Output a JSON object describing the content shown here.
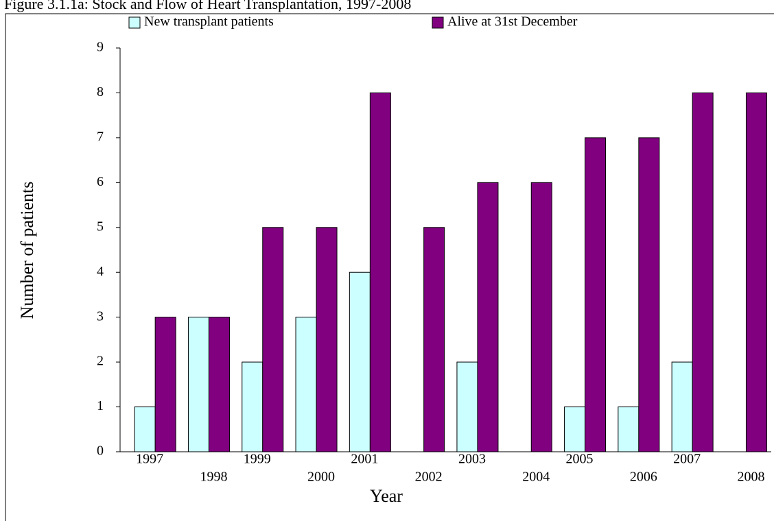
{
  "chart_data": {
    "type": "bar",
    "title": "Figure 3.1.1a: Stock and Flow of Heart Transplantation, 1997-2008",
    "x_label": "Year",
    "y_label": "Number of patients",
    "categories": [
      "1997",
      "1998",
      "1999",
      "2000",
      "2001",
      "2002",
      "2003",
      "2004",
      "2005",
      "2006",
      "2007",
      "2008"
    ],
    "series": [
      {
        "name": "New transplant patients",
        "color": "#ccffff",
        "values": [
          1,
          3,
          2,
          3,
          4,
          0,
          2,
          0,
          1,
          1,
          2,
          0
        ]
      },
      {
        "name": "Alive at 31st December",
        "color": "#800080",
        "values": [
          3,
          3,
          5,
          5,
          8,
          5,
          6,
          6,
          7,
          7,
          8,
          8
        ]
      }
    ],
    "ylim": [
      0,
      9
    ],
    "yticks": [
      0,
      1,
      2,
      3,
      4,
      5,
      6,
      7,
      8,
      9
    ],
    "grid": false
  }
}
